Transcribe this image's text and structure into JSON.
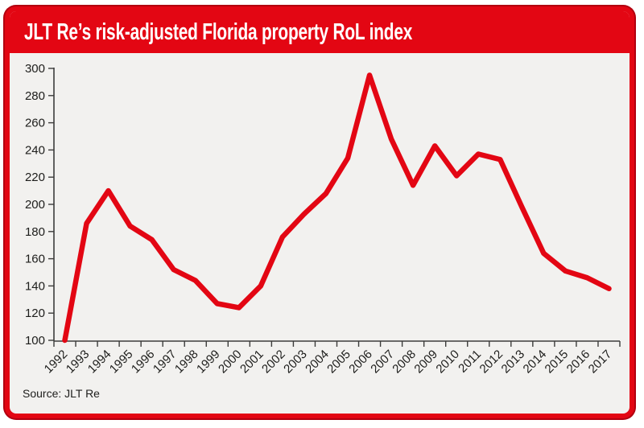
{
  "header": {
    "title": "JLT Re’s risk-adjusted Florida property RoL index"
  },
  "footer": {
    "source": "Source: JLT Re"
  },
  "colors": {
    "brand_red": "#e30613",
    "border_dark_red": "#b2000f",
    "body_bg": "#f2f1ef",
    "axis": "#3c3c3b",
    "label_text": "#1d1d1b",
    "title_text": "#ffffff"
  },
  "chart_data": {
    "type": "line",
    "title": "JLT Re’s risk-adjusted Florida property RoL index",
    "x": [
      "1992",
      "1993",
      "1994",
      "1995",
      "1996",
      "1997",
      "1998",
      "1999",
      "2000",
      "2001",
      "2002",
      "2003",
      "2004",
      "2005",
      "2006",
      "2007",
      "2008",
      "2009",
      "2010",
      "2011",
      "2012",
      "2013",
      "2014",
      "2015",
      "2016",
      "2017"
    ],
    "series": [
      {
        "name": "Risk-adjusted Florida property RoL index",
        "values": [
          100,
          186,
          210,
          184,
          174,
          152,
          144,
          127,
          124,
          140,
          176,
          193,
          208,
          234,
          295,
          248,
          214,
          243,
          221,
          237,
          233,
          198,
          164,
          151,
          146,
          138
        ]
      }
    ],
    "xlabel": "",
    "ylabel": "",
    "ylim": [
      100,
      300
    ],
    "ytick_step": 20,
    "grid": false,
    "legend": "none",
    "line_color": "#e30613",
    "source": "JLT Re"
  }
}
